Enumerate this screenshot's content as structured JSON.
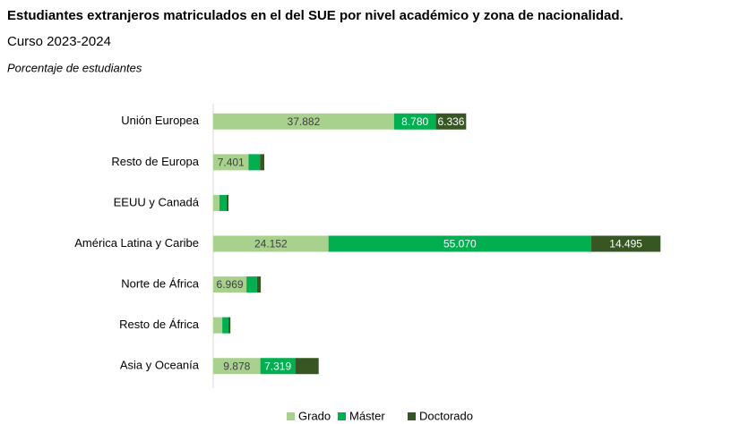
{
  "chart_data": {
    "type": "stacked-bar-horizontal",
    "title": "Estudiantes extranjeros matriculados en el del SUE por nivel académico y zona de nacionalidad.",
    "subtitle": "Curso 2023-2024",
    "note": "Porcentaje de estudiantes",
    "categories": [
      "Unión Europea",
      "Resto de Europa",
      "EEUU y Canadá",
      "América Latina y Caribe",
      "Norte de África",
      "Resto de África",
      "Asia y Oceanía"
    ],
    "xlim": [
      0,
      110000
    ],
    "series": [
      {
        "name": "Grado",
        "color": "#a9d18e",
        "values": [
          37882,
          7401,
          1300,
          24152,
          6969,
          1900,
          9878
        ],
        "value_labels": [
          "37.882",
          "7.401",
          null,
          "24.152",
          "6.969",
          null,
          "9.878"
        ]
      },
      {
        "name": "Máster",
        "color": "#00b050",
        "values": [
          8780,
          2400,
          1500,
          55070,
          2200,
          1300,
          7319
        ],
        "value_labels": [
          "8.780",
          null,
          null,
          "55.070",
          null,
          null,
          "7.319"
        ]
      },
      {
        "name": "Doctorado",
        "color": "#375623",
        "values": [
          6336,
          900,
          400,
          14495,
          800,
          400,
          4900
        ],
        "value_labels": [
          "6.336",
          null,
          null,
          "14.495",
          null,
          null,
          null
        ]
      }
    ],
    "legend": "bottom"
  }
}
